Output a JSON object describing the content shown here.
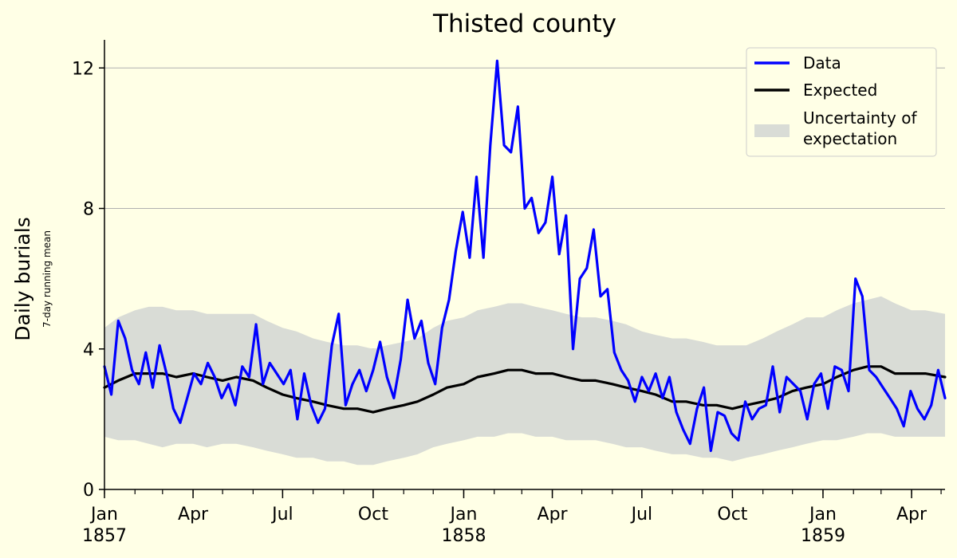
{
  "chart_data": {
    "type": "line",
    "title": "Thisted county",
    "ylabel": "Daily burials",
    "ylabel_sub": "7-day running mean",
    "xlabel": "",
    "ylim": [
      0,
      12.8
    ],
    "xlim": [
      "1857-01-01",
      "1859-05-05"
    ],
    "grid": "horizontal",
    "legend_position": "top-right",
    "yticks": [
      0,
      4,
      8,
      12
    ],
    "xticks": [
      {
        "date": "1857-01-01",
        "label": "Jan",
        "year": "1857"
      },
      {
        "date": "1857-04-01",
        "label": "Apr",
        "year": ""
      },
      {
        "date": "1857-07-01",
        "label": "Jul",
        "year": ""
      },
      {
        "date": "1857-10-01",
        "label": "Oct",
        "year": ""
      },
      {
        "date": "1858-01-01",
        "label": "Jan",
        "year": "1858"
      },
      {
        "date": "1858-04-01",
        "label": "Apr",
        "year": ""
      },
      {
        "date": "1858-07-01",
        "label": "Jul",
        "year": ""
      },
      {
        "date": "1858-10-01",
        "label": "Oct",
        "year": ""
      },
      {
        "date": "1859-01-01",
        "label": "Jan",
        "year": "1859"
      },
      {
        "date": "1859-04-01",
        "label": "Apr",
        "year": ""
      }
    ],
    "colors": {
      "data": "#0000ff",
      "expected": "#000000",
      "band": "#d9dcd6",
      "grid": "#b0b0b0",
      "background": "#ffffe6"
    },
    "legend": [
      {
        "key": "data",
        "label": "Data"
      },
      {
        "key": "expected",
        "label": "Expected"
      },
      {
        "key": "band",
        "label": "Uncertainty of",
        "label2": "expectation"
      }
    ],
    "series": [
      {
        "name": "Data",
        "x": [
          "1857-01-01",
          "1857-01-08",
          "1857-01-15",
          "1857-01-22",
          "1857-01-29",
          "1857-02-05",
          "1857-02-12",
          "1857-02-19",
          "1857-02-26",
          "1857-03-05",
          "1857-03-12",
          "1857-03-19",
          "1857-03-26",
          "1857-04-02",
          "1857-04-09",
          "1857-04-16",
          "1857-04-23",
          "1857-04-30",
          "1857-05-07",
          "1857-05-14",
          "1857-05-21",
          "1857-05-28",
          "1857-06-04",
          "1857-06-11",
          "1857-06-18",
          "1857-06-25",
          "1857-07-02",
          "1857-07-09",
          "1857-07-16",
          "1857-07-23",
          "1857-07-30",
          "1857-08-06",
          "1857-08-13",
          "1857-08-20",
          "1857-08-27",
          "1857-09-03",
          "1857-09-10",
          "1857-09-17",
          "1857-09-24",
          "1857-10-01",
          "1857-10-08",
          "1857-10-15",
          "1857-10-22",
          "1857-10-29",
          "1857-11-05",
          "1857-11-12",
          "1857-11-19",
          "1857-11-26",
          "1857-12-03",
          "1857-12-10",
          "1857-12-17",
          "1857-12-24",
          "1857-12-31",
          "1858-01-07",
          "1858-01-14",
          "1858-01-21",
          "1858-01-28",
          "1858-02-04",
          "1858-02-11",
          "1858-02-18",
          "1858-02-25",
          "1858-03-04",
          "1858-03-11",
          "1858-03-18",
          "1858-03-25",
          "1858-04-01",
          "1858-04-08",
          "1858-04-15",
          "1858-04-22",
          "1858-04-29",
          "1858-05-06",
          "1858-05-13",
          "1858-05-20",
          "1858-05-27",
          "1858-06-03",
          "1858-06-10",
          "1858-06-17",
          "1858-06-24",
          "1858-07-01",
          "1858-07-08",
          "1858-07-15",
          "1858-07-22",
          "1858-07-29",
          "1858-08-05",
          "1858-08-12",
          "1858-08-19",
          "1858-08-26",
          "1858-09-02",
          "1858-09-09",
          "1858-09-16",
          "1858-09-23",
          "1858-09-30",
          "1858-10-07",
          "1858-10-14",
          "1858-10-21",
          "1858-10-28",
          "1858-11-04",
          "1858-11-11",
          "1858-11-18",
          "1858-11-25",
          "1858-12-02",
          "1858-12-09",
          "1858-12-16",
          "1858-12-23",
          "1858-12-30",
          "1859-01-06",
          "1859-01-13",
          "1859-01-20",
          "1859-01-27",
          "1859-02-03",
          "1859-02-10",
          "1859-02-17",
          "1859-02-24",
          "1859-03-03",
          "1859-03-10",
          "1859-03-17",
          "1859-03-24",
          "1859-03-31",
          "1859-04-07",
          "1859-04-14",
          "1859-04-21",
          "1859-04-28",
          "1859-05-05"
        ],
        "values": [
          3.5,
          2.7,
          4.8,
          4.3,
          3.4,
          3.0,
          3.9,
          2.9,
          4.1,
          3.3,
          2.3,
          1.9,
          2.6,
          3.3,
          3.0,
          3.6,
          3.2,
          2.6,
          3.0,
          2.4,
          3.5,
          3.2,
          4.7,
          3.0,
          3.6,
          3.3,
          3.0,
          3.4,
          2.0,
          3.3,
          2.4,
          1.9,
          2.3,
          4.1,
          5.0,
          2.4,
          3.0,
          3.4,
          2.8,
          3.4,
          4.2,
          3.2,
          2.6,
          3.7,
          5.4,
          4.3,
          4.8,
          3.6,
          3.0,
          4.6,
          5.4,
          6.8,
          7.9,
          6.6,
          8.9,
          6.6,
          9.8,
          12.2,
          9.8,
          9.6,
          10.9,
          8.0,
          8.3,
          7.3,
          7.6,
          8.9,
          6.7,
          7.8,
          4.0,
          6.0,
          6.3,
          7.4,
          5.5,
          5.7,
          3.9,
          3.4,
          3.1,
          2.5,
          3.2,
          2.8,
          3.3,
          2.6,
          3.2,
          2.2,
          1.7,
          1.3,
          2.3,
          2.9,
          1.1,
          2.2,
          2.1,
          1.6,
          1.4,
          2.5,
          2.0,
          2.3,
          2.4,
          3.5,
          2.2,
          3.2,
          3.0,
          2.8,
          2.0,
          3.0,
          3.3,
          2.3,
          3.5,
          3.4,
          2.8,
          6.0,
          5.5,
          3.4,
          3.2,
          2.9,
          2.6,
          2.3,
          1.8,
          2.8,
          2.3,
          2.0,
          2.4,
          3.4,
          2.6
        ]
      },
      {
        "name": "Expected",
        "x": [
          "1857-01-01",
          "1857-01-15",
          "1857-02-01",
          "1857-02-15",
          "1857-03-01",
          "1857-03-15",
          "1857-04-01",
          "1857-04-15",
          "1857-05-01",
          "1857-05-15",
          "1857-06-01",
          "1857-06-15",
          "1857-07-01",
          "1857-07-15",
          "1857-08-01",
          "1857-08-15",
          "1857-09-01",
          "1857-09-15",
          "1857-10-01",
          "1857-10-15",
          "1857-11-01",
          "1857-11-15",
          "1857-12-01",
          "1857-12-15",
          "1858-01-01",
          "1858-01-15",
          "1858-02-01",
          "1858-02-15",
          "1858-03-01",
          "1858-03-15",
          "1858-04-01",
          "1858-04-15",
          "1858-05-01",
          "1858-05-15",
          "1858-06-01",
          "1858-06-15",
          "1858-07-01",
          "1858-07-15",
          "1858-08-01",
          "1858-08-15",
          "1858-09-01",
          "1858-09-15",
          "1858-10-01",
          "1858-10-15",
          "1858-11-01",
          "1858-11-15",
          "1858-12-01",
          "1858-12-15",
          "1859-01-01",
          "1859-01-15",
          "1859-02-01",
          "1859-02-15",
          "1859-03-01",
          "1859-03-15",
          "1859-04-01",
          "1859-04-15",
          "1859-05-05"
        ],
        "values": [
          2.9,
          3.1,
          3.3,
          3.3,
          3.3,
          3.2,
          3.3,
          3.2,
          3.1,
          3.2,
          3.1,
          2.9,
          2.7,
          2.6,
          2.5,
          2.4,
          2.3,
          2.3,
          2.2,
          2.3,
          2.4,
          2.5,
          2.7,
          2.9,
          3.0,
          3.2,
          3.3,
          3.4,
          3.4,
          3.3,
          3.3,
          3.2,
          3.1,
          3.1,
          3.0,
          2.9,
          2.8,
          2.7,
          2.5,
          2.5,
          2.4,
          2.4,
          2.3,
          2.4,
          2.5,
          2.6,
          2.8,
          2.9,
          3.0,
          3.2,
          3.4,
          3.5,
          3.5,
          3.3,
          3.3,
          3.3,
          3.2
        ]
      }
    ],
    "uncertainty_band": {
      "name": "Uncertainty of expectation",
      "x": [
        "1857-01-01",
        "1857-01-15",
        "1857-02-01",
        "1857-02-15",
        "1857-03-01",
        "1857-03-15",
        "1857-04-01",
        "1857-04-15",
        "1857-05-01",
        "1857-05-15",
        "1857-06-01",
        "1857-06-15",
        "1857-07-01",
        "1857-07-15",
        "1857-08-01",
        "1857-08-15",
        "1857-09-01",
        "1857-09-15",
        "1857-10-01",
        "1857-10-15",
        "1857-11-01",
        "1857-11-15",
        "1857-12-01",
        "1857-12-15",
        "1858-01-01",
        "1858-01-15",
        "1858-02-01",
        "1858-02-15",
        "1858-03-01",
        "1858-03-15",
        "1858-04-01",
        "1858-04-15",
        "1858-05-01",
        "1858-05-15",
        "1858-06-01",
        "1858-06-15",
        "1858-07-01",
        "1858-07-15",
        "1858-08-01",
        "1858-08-15",
        "1858-09-01",
        "1858-09-15",
        "1858-10-01",
        "1858-10-15",
        "1858-11-01",
        "1858-11-15",
        "1858-12-01",
        "1858-12-15",
        "1859-01-01",
        "1859-01-15",
        "1859-02-01",
        "1859-02-15",
        "1859-03-01",
        "1859-03-15",
        "1859-04-01",
        "1859-04-15",
        "1859-05-05"
      ],
      "lower": [
        1.5,
        1.4,
        1.4,
        1.3,
        1.2,
        1.3,
        1.3,
        1.2,
        1.3,
        1.3,
        1.2,
        1.1,
        1.0,
        0.9,
        0.9,
        0.8,
        0.8,
        0.7,
        0.7,
        0.8,
        0.9,
        1.0,
        1.2,
        1.3,
        1.4,
        1.5,
        1.5,
        1.6,
        1.6,
        1.5,
        1.5,
        1.4,
        1.4,
        1.4,
        1.3,
        1.2,
        1.2,
        1.1,
        1.0,
        1.0,
        0.9,
        0.9,
        0.8,
        0.9,
        1.0,
        1.1,
        1.2,
        1.3,
        1.4,
        1.4,
        1.5,
        1.6,
        1.6,
        1.5,
        1.5,
        1.5,
        1.5
      ],
      "upper": [
        4.6,
        4.9,
        5.1,
        5.2,
        5.2,
        5.1,
        5.1,
        5.0,
        5.0,
        5.0,
        5.0,
        4.8,
        4.6,
        4.5,
        4.3,
        4.2,
        4.1,
        4.1,
        4.0,
        4.1,
        4.2,
        4.3,
        4.6,
        4.8,
        4.9,
        5.1,
        5.2,
        5.3,
        5.3,
        5.2,
        5.1,
        5.0,
        4.9,
        4.9,
        4.8,
        4.7,
        4.5,
        4.4,
        4.3,
        4.3,
        4.2,
        4.1,
        4.1,
        4.1,
        4.3,
        4.5,
        4.7,
        4.9,
        4.9,
        5.1,
        5.3,
        5.4,
        5.5,
        5.3,
        5.1,
        5.1,
        5.0
      ]
    }
  }
}
